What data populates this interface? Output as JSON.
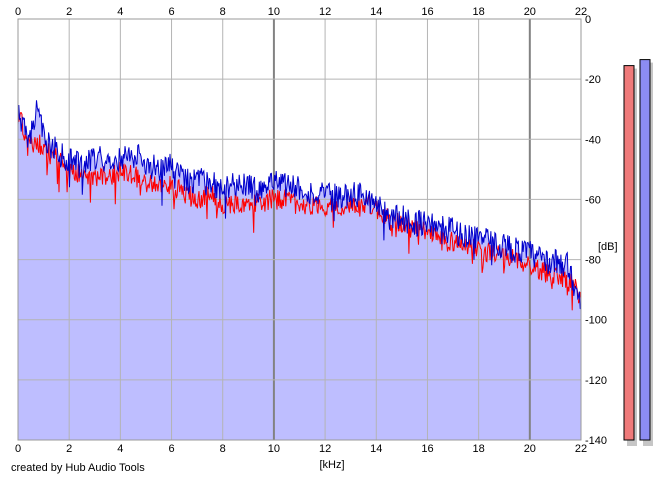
{
  "credit": "created by Hub Audio Tools",
  "colors": {
    "background": "#ffffff",
    "plot_fill": "#bebeff",
    "grid": "#b4b4b4",
    "grid_major": "#828282",
    "channel_left": "#ff0000",
    "channel_right": "#0000cc",
    "meter_left": "#ef7a7a",
    "meter_right": "#8c8cf4"
  },
  "chart_data": {
    "type": "area",
    "title": "",
    "xlabel": "[kHz]",
    "ylabel": "[dB]",
    "xlim": [
      0,
      22
    ],
    "ylim": [
      -140,
      0
    ],
    "x_ticks": [
      "0",
      "2",
      "4",
      "6",
      "8",
      "10",
      "12",
      "14",
      "16",
      "18",
      "20",
      "22"
    ],
    "y_ticks": [
      "0",
      "-20",
      "-40",
      "-60",
      "-80",
      "-100",
      "-120",
      "-140"
    ],
    "grid": true,
    "x": [
      0.0,
      0.25,
      0.5,
      0.75,
      1.0,
      1.5,
      2.0,
      2.5,
      3.0,
      3.5,
      4.0,
      4.5,
      5.0,
      5.5,
      6.0,
      6.5,
      7.0,
      7.5,
      8.0,
      8.5,
      9.0,
      9.5,
      10.0,
      10.5,
      11.0,
      11.5,
      12.0,
      12.5,
      13.0,
      13.5,
      14.0,
      14.5,
      15.0,
      15.5,
      16.0,
      16.5,
      17.0,
      17.5,
      18.0,
      18.5,
      19.0,
      19.5,
      20.0,
      20.5,
      21.0,
      21.5,
      22.0
    ],
    "series": [
      {
        "values": [
          -30,
          -38,
          -42,
          -40,
          -44,
          -46,
          -50,
          -52,
          -53,
          -52,
          -51,
          -52,
          -54,
          -56,
          -55,
          -58,
          -60,
          -58,
          -62,
          -61,
          -62,
          -61,
          -60,
          -60,
          -61,
          -62,
          -62,
          -63,
          -62,
          -61,
          -63,
          -67,
          -68,
          -70,
          -71,
          -73,
          -74,
          -75,
          -76,
          -78,
          -79,
          -80,
          -82,
          -84,
          -85,
          -87,
          -92
        ]
      },
      {
        "values": [
          -31,
          -37,
          -40,
          -27,
          -39,
          -44,
          -47,
          -49,
          -46,
          -47,
          -46,
          -45,
          -48,
          -50,
          -49,
          -53,
          -54,
          -54,
          -57,
          -55,
          -56,
          -57,
          -55,
          -55,
          -56,
          -58,
          -59,
          -59,
          -59,
          -58,
          -62,
          -66,
          -66,
          -68,
          -67,
          -70,
          -70,
          -72,
          -72,
          -75,
          -75,
          -77,
          -78,
          -80,
          -81,
          -82,
          -95
        ]
      }
    ],
    "meters": [
      -15.5,
      -13.5
    ]
  }
}
